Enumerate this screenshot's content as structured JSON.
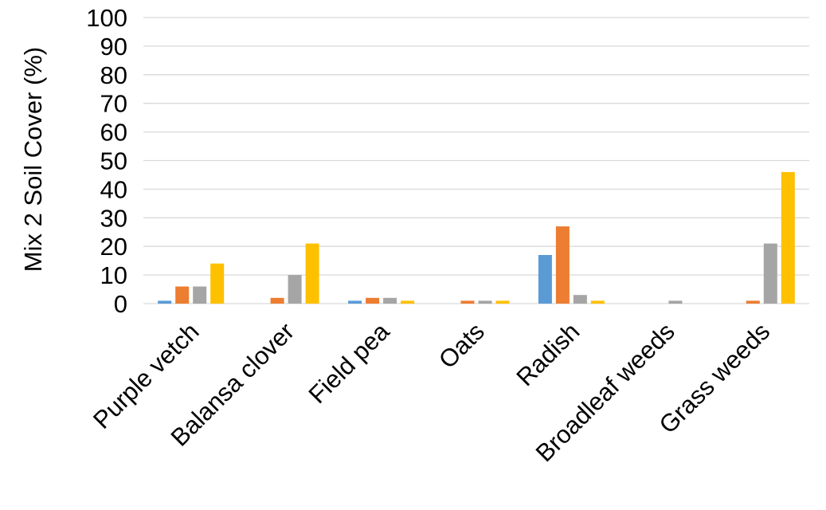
{
  "chart_data": {
    "type": "bar",
    "title": "",
    "xlabel": "",
    "ylabel": "Mix 2 Soil Cover (%)",
    "ylim": [
      0,
      100
    ],
    "yticks": [
      0,
      10,
      20,
      30,
      40,
      50,
      60,
      70,
      80,
      90,
      100
    ],
    "grid": true,
    "legend": "none",
    "categories": [
      "Purple vetch",
      "Balansa clover",
      "Field pea",
      "Oats",
      "Radish",
      "Broadleaf weeds",
      "Grass weeds"
    ],
    "series": [
      {
        "color": "#5b9bd5",
        "values": [
          1,
          0,
          1,
          0,
          17,
          0,
          0
        ]
      },
      {
        "color": "#ed7d31",
        "values": [
          6,
          2,
          2,
          1,
          27,
          0,
          1
        ]
      },
      {
        "color": "#a5a5a5",
        "values": [
          6,
          10,
          2,
          1,
          3,
          1,
          21
        ]
      },
      {
        "color": "#ffc000",
        "values": [
          14,
          21,
          1,
          1,
          1,
          0,
          46
        ]
      }
    ]
  }
}
